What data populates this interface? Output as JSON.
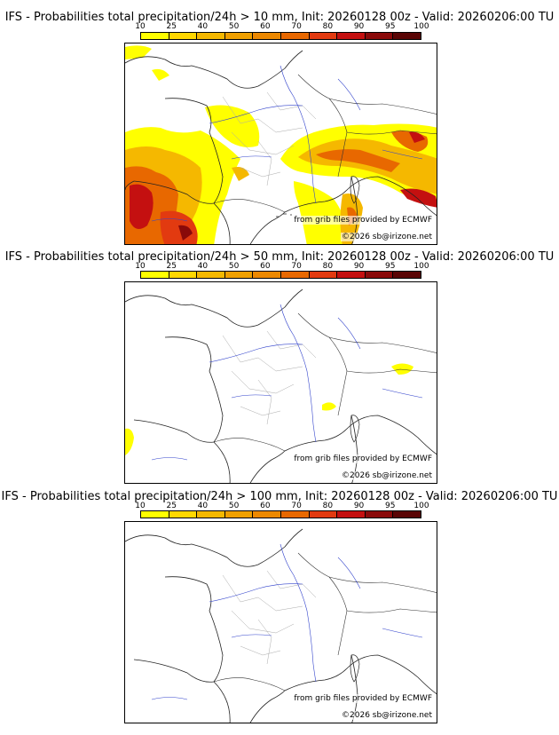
{
  "colorbar": {
    "ticks": [
      "10",
      "25",
      "40",
      "50",
      "60",
      "70",
      "80",
      "90",
      "95",
      "100"
    ],
    "colors": [
      "#ffff00",
      "#ffd700",
      "#f5b800",
      "#f0a000",
      "#ec8800",
      "#e86800",
      "#e23a10",
      "#c41010",
      "#8a0a0a",
      "#5a0505"
    ]
  },
  "panels": [
    {
      "title": "IFS - Probabilities total precipitation/24h > 10 mm, Init: 20260128 00z - Valid: 20260206:00 TU",
      "credit_source": "from grib files provided by ECMWF",
      "credit_copyright": "©2026 sb@irizone.net"
    },
    {
      "title": "IFS - Probabilities total precipitation/24h > 50 mm, Init: 20260128 00z - Valid: 20260206:00 TU",
      "credit_source": "from grib files provided by ECMWF",
      "credit_copyright": "©2026 sb@irizone.net"
    },
    {
      "title": "IFS - Probabilities total precipitation/24h > 100 mm, Init: 20260128 00z - Valid: 20260206:00 TU",
      "credit_source": "from grib files provided by ECMWF",
      "credit_copyright": "©2026 sb@irizone.net"
    }
  ]
}
